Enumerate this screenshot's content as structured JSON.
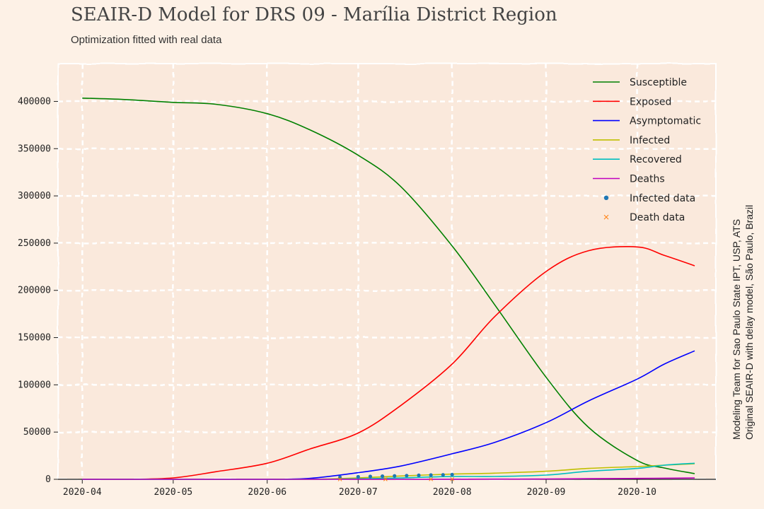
{
  "header": {
    "title": "SEAIR-D Model for DRS 09 - Marília District Region",
    "subtitle": "Optimization fitted with real data"
  },
  "credit": {
    "line1": "Modeling Team for Sao Paulo State IPT, USP, ATS",
    "line2": "Original SEAIR-D with delay model, São Paulo, Brazil"
  },
  "chart_data": {
    "type": "line",
    "title": "SEAIR-D Model for DRS 09 - Marília District Region",
    "subtitle": "Optimization fitted with real data",
    "xlabel": "",
    "ylabel": "",
    "x_axis": {
      "type": "date",
      "range": [
        "2020-03-24",
        "2020-10-27"
      ],
      "ticks": [
        "2020-04",
        "2020-05",
        "2020-06",
        "2020-07",
        "2020-08",
        "2020-09",
        "2020-10"
      ]
    },
    "y_axis": {
      "range": [
        0,
        440000
      ],
      "ticks": [
        0,
        50000,
        100000,
        150000,
        200000,
        250000,
        300000,
        350000,
        400000
      ]
    },
    "grid": true,
    "legend_position": "top-right",
    "x": [
      "2020-04-01",
      "2020-04-15",
      "2020-05-01",
      "2020-05-15",
      "2020-06-01",
      "2020-06-15",
      "2020-07-01",
      "2020-07-15",
      "2020-08-01",
      "2020-08-15",
      "2020-09-01",
      "2020-09-15",
      "2020-10-01",
      "2020-10-10",
      "2020-10-20"
    ],
    "series": [
      {
        "name": "Susceptible",
        "color": "#008000",
        "values": [
          403500,
          402000,
          399000,
          397000,
          387000,
          370000,
          343000,
          310000,
          247000,
          185000,
          108000,
          55000,
          20000,
          12000,
          6000
        ]
      },
      {
        "name": "Exposed",
        "color": "#ff0000",
        "values": [
          0,
          0,
          1500,
          8000,
          17000,
          32000,
          49000,
          78000,
          122000,
          172000,
          220000,
          242000,
          246000,
          237000,
          226000
        ]
      },
      {
        "name": "Asymptomatic",
        "color": "#0000ff",
        "values": [
          0,
          0,
          0,
          0,
          0,
          1000,
          7000,
          14000,
          27000,
          39000,
          60000,
          83000,
          106000,
          122000,
          136000
        ]
      },
      {
        "name": "Infected",
        "color": "#bfbf00",
        "values": [
          0,
          0,
          0,
          0,
          0,
          0,
          1500,
          3500,
          5500,
          6500,
          8500,
          11500,
          13500,
          15000,
          16500
        ]
      },
      {
        "name": "Recovered",
        "color": "#00bfbf",
        "values": [
          0,
          0,
          0,
          0,
          0,
          0,
          500,
          1500,
          3000,
          3000,
          4500,
          8500,
          11500,
          15000,
          17000
        ]
      },
      {
        "name": "Deaths",
        "color": "#bf00bf",
        "values": [
          0,
          0,
          0,
          0,
          0,
          0,
          0,
          0,
          50,
          200,
          400,
          700,
          1000,
          1200,
          1400
        ]
      }
    ],
    "scatter_series": [
      {
        "name": "Infected data",
        "color": "#1f77b4",
        "marker": "circle",
        "x": [
          "2020-06-25",
          "2020-07-01",
          "2020-07-05",
          "2020-07-09",
          "2020-07-13",
          "2020-07-17",
          "2020-07-21",
          "2020-07-25",
          "2020-07-29",
          "2020-08-01"
        ],
        "values": [
          2200,
          2700,
          3000,
          3300,
          3600,
          3900,
          4200,
          4500,
          4700,
          5000
        ]
      },
      {
        "name": "Death data",
        "color": "#ff7f0e",
        "marker": "x",
        "x": [
          "2020-06-25",
          "2020-07-10",
          "2020-07-25",
          "2020-08-01"
        ],
        "values": [
          50,
          90,
          130,
          150
        ]
      }
    ]
  }
}
